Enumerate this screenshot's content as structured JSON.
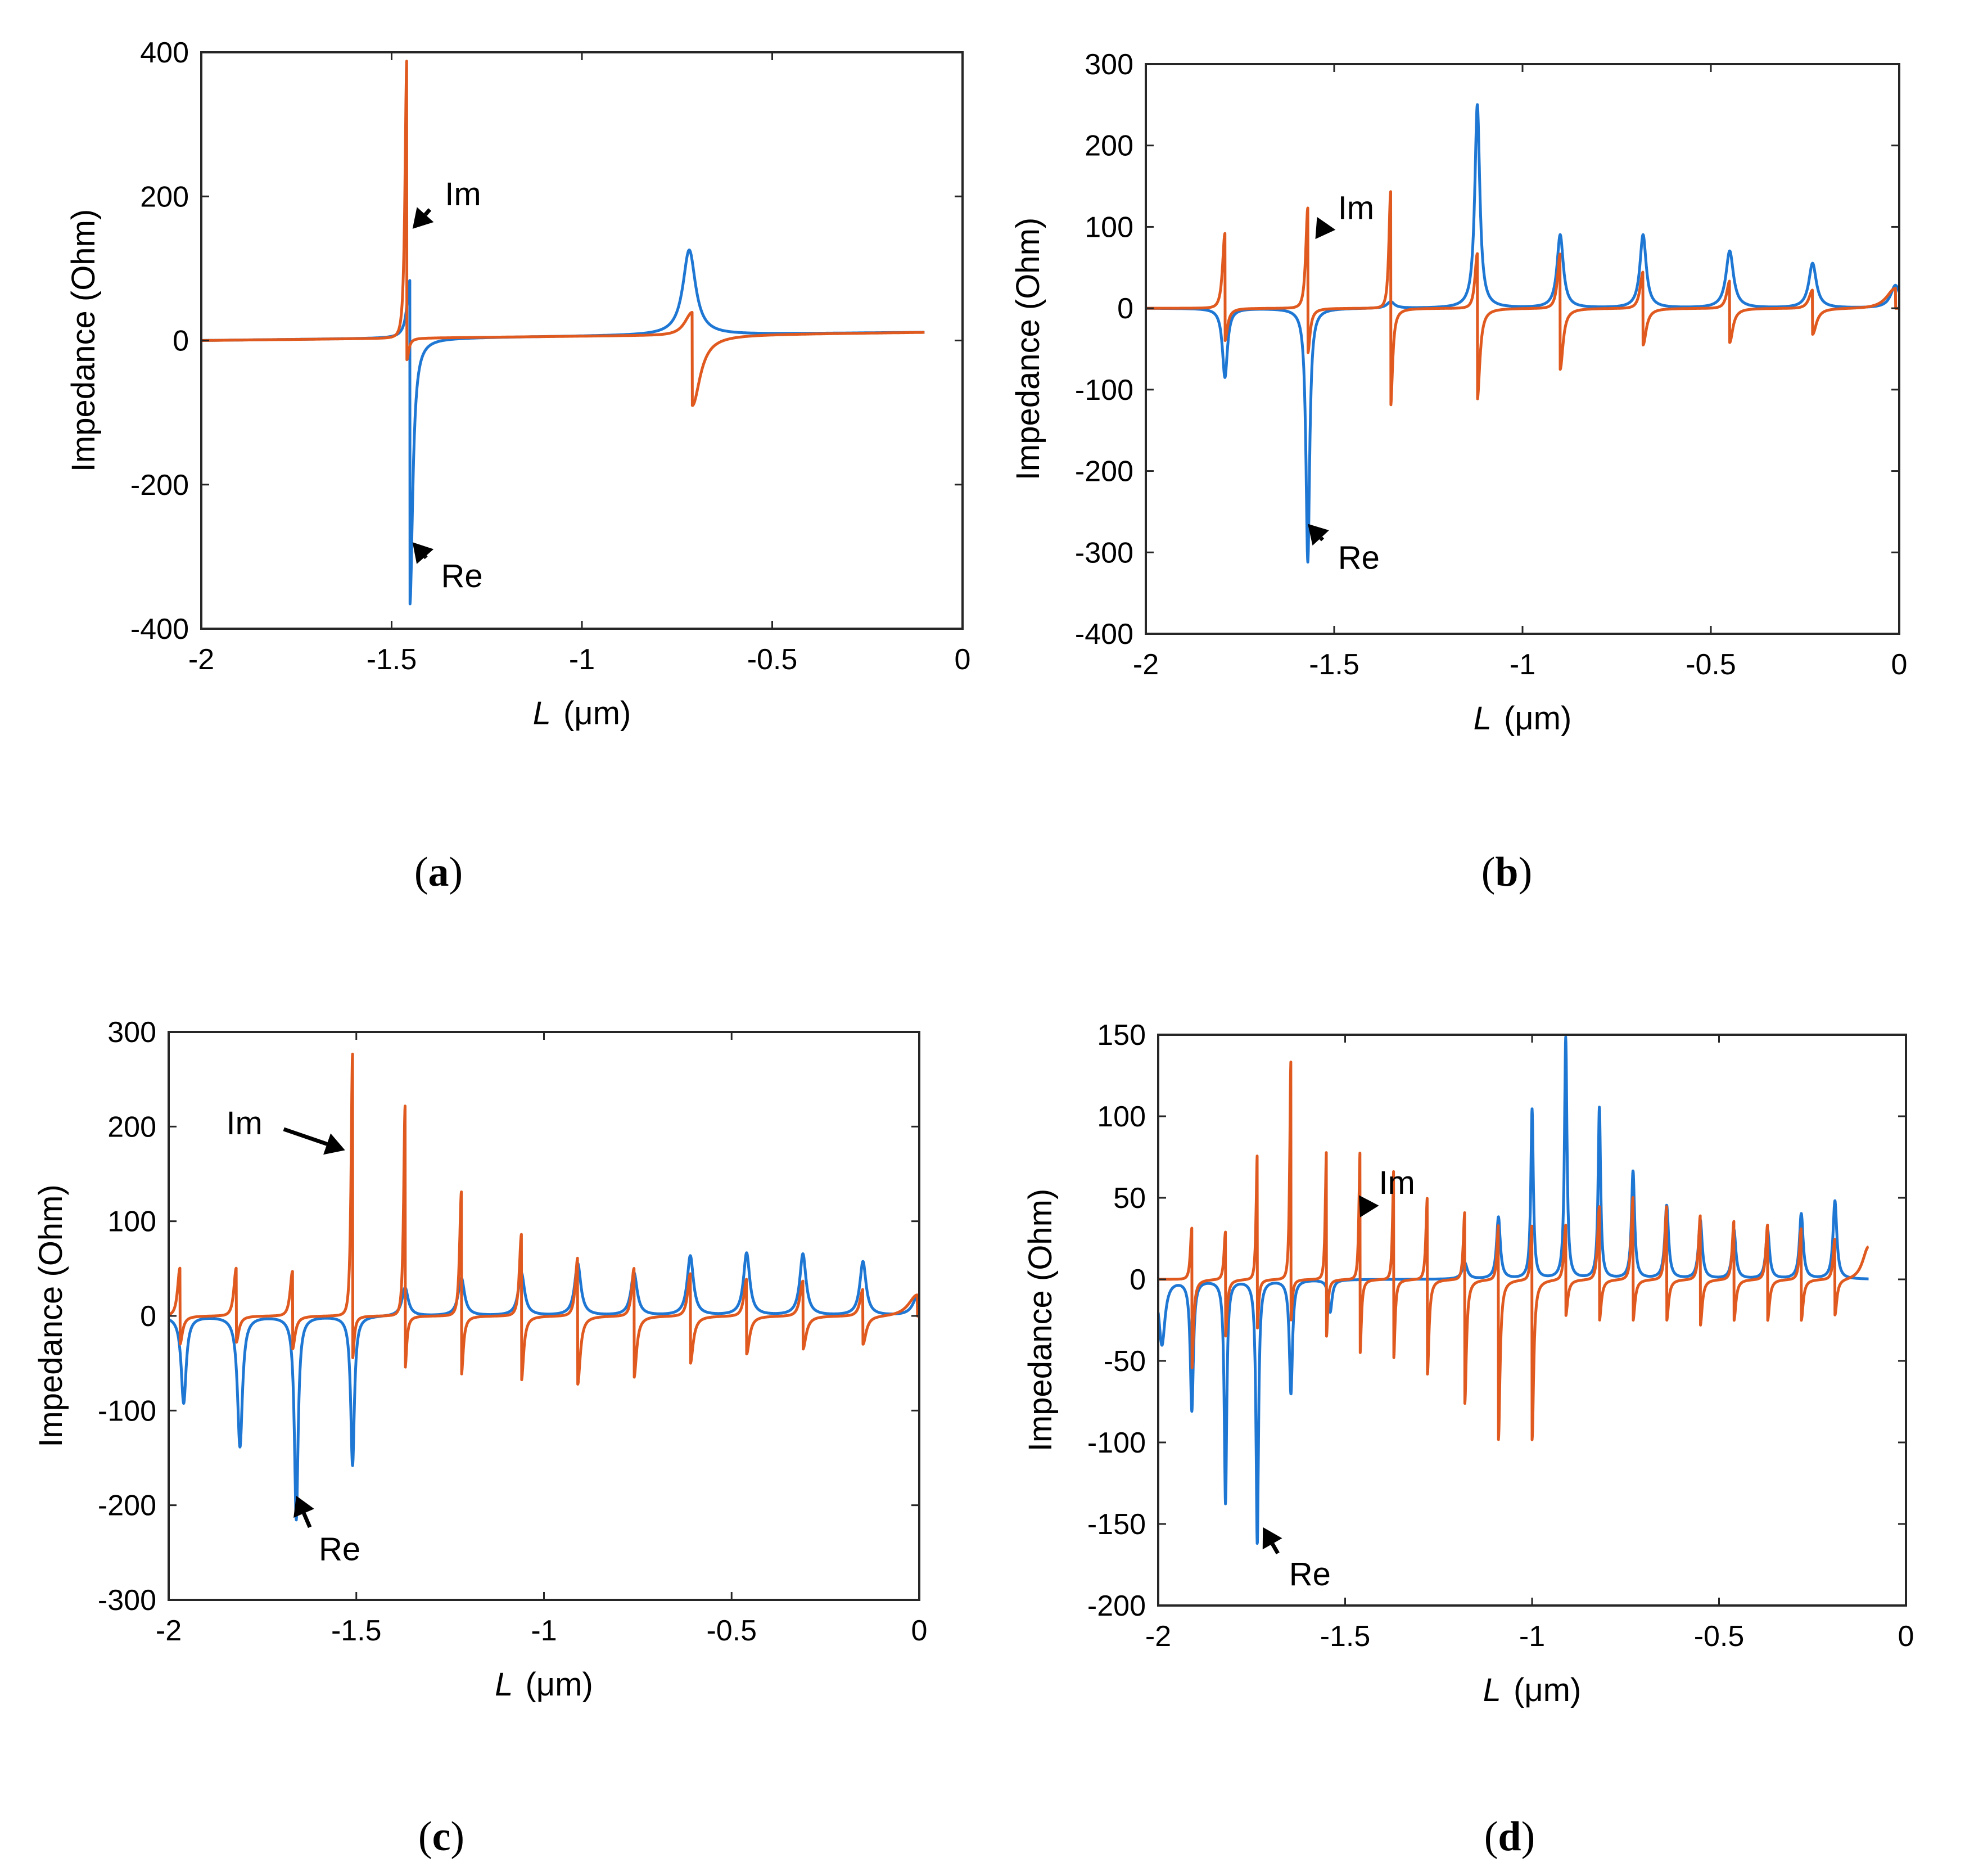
{
  "colors": {
    "re": "#1f77d4",
    "im": "#e05a20",
    "axis": "#262626"
  },
  "chart_data": [
    {
      "type": "line",
      "caption": "(a)",
      "caption_letter": "a",
      "xlabel_symbol": "L",
      "xlabel_unit": "(μm)",
      "ylabel": "Impedance  (Ohm)",
      "xlim": [
        -2,
        0
      ],
      "ylim": [
        -400,
        400
      ],
      "xticks": [
        -2,
        -1.5,
        -1,
        -0.5,
        0
      ],
      "yticks": [
        -400,
        -200,
        0,
        200,
        400
      ],
      "x_end": -0.1,
      "series": [
        {
          "key": "re",
          "baseline": 0,
          "baseline_slope": 12,
          "features": [
            {
              "x": -1.452,
              "type": "antires",
              "a": 80,
              "b": -370,
              "w": 0.009
            },
            {
              "x": -0.718,
              "type": "res",
              "a": 118,
              "w": 0.02
            }
          ]
        },
        {
          "key": "im",
          "baseline": 0,
          "baseline_slope": 12,
          "features": [
            {
              "x": -1.46,
              "type": "disp",
              "a": 345,
              "b": -30,
              "w": 0.006
            },
            {
              "x": -0.71,
              "type": "disp",
              "a": 28,
              "b": -98,
              "w": 0.025
            }
          ]
        }
      ],
      "annotations": [
        {
          "label": "Im",
          "series": "im",
          "tip": [
            -1.445,
            155
          ],
          "text_at": [
            -1.36,
            205
          ]
        },
        {
          "label": "Re",
          "series": "re",
          "tip": [
            -1.445,
            -280
          ],
          "text_at": [
            -1.37,
            -325
          ]
        }
      ]
    },
    {
      "type": "line",
      "caption": "(b)",
      "caption_letter": "b",
      "xlabel_symbol": "L",
      "xlabel_unit": "(μm)",
      "ylabel": "Impedance  (Ohm)",
      "xlim": [
        -2,
        0
      ],
      "ylim": [
        -400,
        300
      ],
      "xticks": [
        -2,
        -1.5,
        -1,
        -0.5,
        0
      ],
      "yticks": [
        -400,
        -300,
        -200,
        -100,
        0,
        100,
        200,
        300
      ],
      "x_end": 0,
      "series": [
        {
          "key": "re",
          "baseline": 0,
          "baseline_slope": 0,
          "features": [
            {
              "x": -1.79,
              "type": "neg",
              "a": -85,
              "w": 0.008
            },
            {
              "x": -1.57,
              "type": "neg",
              "a": -312,
              "w": 0.006
            },
            {
              "x": -1.35,
              "type": "res",
              "a": 8,
              "w": 0.012
            },
            {
              "x": -1.12,
              "type": "res",
              "a": 250,
              "w": 0.008
            },
            {
              "x": -0.9,
              "type": "res",
              "a": 90,
              "w": 0.01
            },
            {
              "x": -0.68,
              "type": "res",
              "a": 90,
              "w": 0.01
            },
            {
              "x": -0.45,
              "type": "res",
              "a": 70,
              "w": 0.012
            },
            {
              "x": -0.23,
              "type": "res",
              "a": 55,
              "w": 0.012
            },
            {
              "x": -0.01,
              "type": "res",
              "a": 28,
              "w": 0.015
            }
          ]
        },
        {
          "key": "im",
          "baseline": 0,
          "baseline_slope": 0,
          "features": [
            {
              "x": -1.79,
              "type": "disp",
              "a": 82,
              "b": -40,
              "w": 0.008
            },
            {
              "x": -1.57,
              "type": "disp",
              "a": 110,
              "b": -55,
              "w": 0.007
            },
            {
              "x": -1.35,
              "type": "disp",
              "a": 128,
              "b": -120,
              "w": 0.006
            },
            {
              "x": -1.12,
              "type": "disp",
              "a": 60,
              "b": -112,
              "w": 0.008
            },
            {
              "x": -0.9,
              "type": "disp",
              "a": 60,
              "b": -75,
              "w": 0.009
            },
            {
              "x": -0.68,
              "type": "disp",
              "a": 40,
              "b": -45,
              "w": 0.01
            },
            {
              "x": -0.45,
              "type": "disp",
              "a": 30,
              "b": -42,
              "w": 0.01
            },
            {
              "x": -0.23,
              "type": "disp",
              "a": 20,
              "b": -32,
              "w": 0.012
            },
            {
              "x": -0.01,
              "type": "disp",
              "a": 22,
              "b": 0,
              "w": 0.03
            }
          ]
        }
      ],
      "annotations": [
        {
          "label": "Im",
          "series": "im",
          "tip": [
            -1.55,
            85
          ],
          "text_at": [
            -1.49,
            125
          ]
        },
        {
          "label": "Re",
          "series": "re",
          "tip": [
            -1.57,
            -265
          ],
          "text_at": [
            -1.49,
            -305
          ]
        }
      ]
    },
    {
      "type": "line",
      "caption": "(c)",
      "caption_letter": "c",
      "xlabel_symbol": "L",
      "xlabel_unit": "(μm)",
      "ylabel": "Impedance  (Ohm)",
      "xlim": [
        -2,
        0
      ],
      "ylim": [
        -300,
        300
      ],
      "xticks": [
        -2,
        -1.5,
        -1,
        -0.5,
        0
      ],
      "yticks": [
        -300,
        -200,
        -100,
        0,
        100,
        200,
        300
      ],
      "x_end": 0,
      "series": [
        {
          "key": "re",
          "baseline": 0,
          "baseline_slope": 0,
          "features": [
            {
              "x": -1.96,
              "type": "neg",
              "a": -92,
              "w": 0.008
            },
            {
              "x": -1.81,
              "type": "neg",
              "a": -138,
              "w": 0.008
            },
            {
              "x": -1.66,
              "type": "neg",
              "a": -215,
              "w": 0.006
            },
            {
              "x": -1.51,
              "type": "neg",
              "a": -158,
              "w": 0.006
            },
            {
              "x": -1.37,
              "type": "res",
              "a": 30,
              "w": 0.01
            },
            {
              "x": -1.22,
              "type": "res",
              "a": 40,
              "w": 0.01
            },
            {
              "x": -1.06,
              "type": "res",
              "a": 45,
              "w": 0.01
            },
            {
              "x": -0.91,
              "type": "res",
              "a": 55,
              "w": 0.01
            },
            {
              "x": -0.76,
              "type": "res",
              "a": 45,
              "w": 0.01
            },
            {
              "x": -0.61,
              "type": "res",
              "a": 63,
              "w": 0.01
            },
            {
              "x": -0.46,
              "type": "res",
              "a": 66,
              "w": 0.01
            },
            {
              "x": -0.31,
              "type": "res",
              "a": 65,
              "w": 0.01
            },
            {
              "x": -0.15,
              "type": "res",
              "a": 57,
              "w": 0.01
            },
            {
              "x": -0.005,
              "type": "res",
              "a": 20,
              "w": 0.015
            }
          ]
        },
        {
          "key": "im",
          "baseline": 0,
          "baseline_slope": 0,
          "features": [
            {
              "x": -1.97,
              "type": "disp",
              "a": 45,
              "b": -30,
              "w": 0.008
            },
            {
              "x": -1.82,
              "type": "disp",
              "a": 45,
              "b": -28,
              "w": 0.008
            },
            {
              "x": -1.67,
              "type": "disp",
              "a": 42,
              "b": -35,
              "w": 0.008
            },
            {
              "x": -1.51,
              "type": "disp",
              "a": 247,
              "b": -45,
              "w": 0.005
            },
            {
              "x": -1.37,
              "type": "disp",
              "a": 198,
              "b": -55,
              "w": 0.005
            },
            {
              "x": -1.22,
              "type": "disp",
              "a": 117,
              "b": -62,
              "w": 0.006
            },
            {
              "x": -1.06,
              "type": "disp",
              "a": 77,
              "b": -68,
              "w": 0.007
            },
            {
              "x": -0.91,
              "type": "disp",
              "a": 55,
              "b": -72,
              "w": 0.008
            },
            {
              "x": -0.76,
              "type": "disp",
              "a": 45,
              "b": -65,
              "w": 0.008
            },
            {
              "x": -0.61,
              "type": "disp",
              "a": 40,
              "b": -50,
              "w": 0.009
            },
            {
              "x": -0.46,
              "type": "disp",
              "a": 35,
              "b": -40,
              "w": 0.009
            },
            {
              "x": -0.31,
              "type": "disp",
              "a": 33,
              "b": -35,
              "w": 0.01
            },
            {
              "x": -0.15,
              "type": "disp",
              "a": 25,
              "b": -30,
              "w": 0.01
            },
            {
              "x": -0.005,
              "type": "disp",
              "a": 20,
              "b": 0,
              "w": 0.03
            }
          ]
        }
      ],
      "annotations": [
        {
          "label": "Im",
          "series": "im",
          "tip": [
            -1.53,
            175
          ],
          "text_at": [
            -1.75,
            205
          ]
        },
        {
          "label": "Re",
          "series": "re",
          "tip": [
            -1.66,
            -190
          ],
          "text_at": [
            -1.6,
            -245
          ]
        }
      ]
    },
    {
      "type": "line",
      "caption": "(d)",
      "caption_letter": "d",
      "xlabel_symbol": "L",
      "xlabel_unit": "(μm)",
      "ylabel": "Impedance  (Ohm)",
      "xlim": [
        -2,
        0
      ],
      "ylim": [
        -200,
        150
      ],
      "xticks": [
        -2,
        -1.5,
        -1,
        -0.5,
        0
      ],
      "yticks": [
        -200,
        -150,
        -100,
        -50,
        0,
        50,
        100,
        150
      ],
      "x_end": -0.1,
      "series": [
        {
          "key": "re",
          "baseline": 0,
          "baseline_slope": 0,
          "features": [
            {
              "x": -1.99,
              "type": "neg",
              "a": -40,
              "w": 0.01
            },
            {
              "x": -1.91,
              "type": "neg",
              "a": -80,
              "w": 0.005
            },
            {
              "x": -1.82,
              "type": "neg",
              "a": -137,
              "w": 0.004
            },
            {
              "x": -1.735,
              "type": "neg",
              "a": -162,
              "w": 0.004
            },
            {
              "x": -1.645,
              "type": "neg",
              "a": -70,
              "w": 0.005
            },
            {
              "x": -1.54,
              "type": "neg",
              "a": -20,
              "w": 0.006
            },
            {
              "x": -1.18,
              "type": "res",
              "a": 10,
              "w": 0.008
            },
            {
              "x": -1.09,
              "type": "res",
              "a": 38,
              "w": 0.006
            },
            {
              "x": -1.0,
              "type": "res",
              "a": 104,
              "w": 0.004
            },
            {
              "x": -0.91,
              "type": "res",
              "a": 148,
              "w": 0.004
            },
            {
              "x": -0.82,
              "type": "res",
              "a": 105,
              "w": 0.004
            },
            {
              "x": -0.73,
              "type": "res",
              "a": 66,
              "w": 0.005
            },
            {
              "x": -0.64,
              "type": "res",
              "a": 45,
              "w": 0.006
            },
            {
              "x": -0.55,
              "type": "res",
              "a": 36,
              "w": 0.006
            },
            {
              "x": -0.46,
              "type": "res",
              "a": 30,
              "w": 0.006
            },
            {
              "x": -0.37,
              "type": "res",
              "a": 30,
              "w": 0.006
            },
            {
              "x": -0.28,
              "type": "res",
              "a": 40,
              "w": 0.006
            },
            {
              "x": -0.19,
              "type": "res",
              "a": 48,
              "w": 0.006
            }
          ]
        },
        {
          "key": "im",
          "baseline": 0,
          "baseline_slope": 0,
          "features": [
            {
              "x": -1.91,
              "type": "disp",
              "a": 28,
              "b": -55,
              "w": 0.005
            },
            {
              "x": -1.82,
              "type": "disp",
              "a": 26,
              "b": -35,
              "w": 0.005
            },
            {
              "x": -1.735,
              "type": "disp",
              "a": 68,
              "b": -30,
              "w": 0.004
            },
            {
              "x": -1.645,
              "type": "disp",
              "a": 120,
              "b": -25,
              "w": 0.004
            },
            {
              "x": -1.55,
              "type": "disp",
              "a": 70,
              "b": -35,
              "w": 0.004
            },
            {
              "x": -1.46,
              "type": "disp",
              "a": 70,
              "b": -45,
              "w": 0.004
            },
            {
              "x": -1.37,
              "type": "disp",
              "a": 60,
              "b": -48,
              "w": 0.004
            },
            {
              "x": -1.28,
              "type": "disp",
              "a": 45,
              "b": -58,
              "w": 0.005
            },
            {
              "x": -1.18,
              "type": "disp",
              "a": 37,
              "b": -76,
              "w": 0.005
            },
            {
              "x": -1.09,
              "type": "disp",
              "a": 30,
              "b": -98,
              "w": 0.005
            },
            {
              "x": -1.0,
              "type": "disp",
              "a": 30,
              "b": -98,
              "w": 0.005
            },
            {
              "x": -0.91,
              "type": "disp",
              "a": 30,
              "b": -22,
              "w": 0.006
            },
            {
              "x": -0.82,
              "type": "disp",
              "a": 40,
              "b": -25,
              "w": 0.006
            },
            {
              "x": -0.73,
              "type": "disp",
              "a": 45,
              "b": -25,
              "w": 0.006
            },
            {
              "x": -0.64,
              "type": "disp",
              "a": 40,
              "b": -25,
              "w": 0.006
            },
            {
              "x": -0.55,
              "type": "disp",
              "a": 35,
              "b": -28,
              "w": 0.006
            },
            {
              "x": -0.46,
              "type": "disp",
              "a": 32,
              "b": -25,
              "w": 0.006
            },
            {
              "x": -0.37,
              "type": "disp",
              "a": 30,
              "b": -25,
              "w": 0.006
            },
            {
              "x": -0.28,
              "type": "disp",
              "a": 28,
              "b": -25,
              "w": 0.006
            },
            {
              "x": -0.19,
              "type": "disp",
              "a": 22,
              "b": -22,
              "w": 0.006
            },
            {
              "x": -0.1,
              "type": "disp",
              "a": 18,
              "b": 0,
              "w": 0.02
            }
          ]
        }
      ],
      "annotations": [
        {
          "label": "Im",
          "series": "im",
          "tip": [
            -1.46,
            38
          ],
          "text_at": [
            -1.41,
            60
          ]
        },
        {
          "label": "Re",
          "series": "re",
          "tip": [
            -1.72,
            -152
          ],
          "text_at": [
            -1.65,
            -180
          ]
        }
      ]
    }
  ]
}
